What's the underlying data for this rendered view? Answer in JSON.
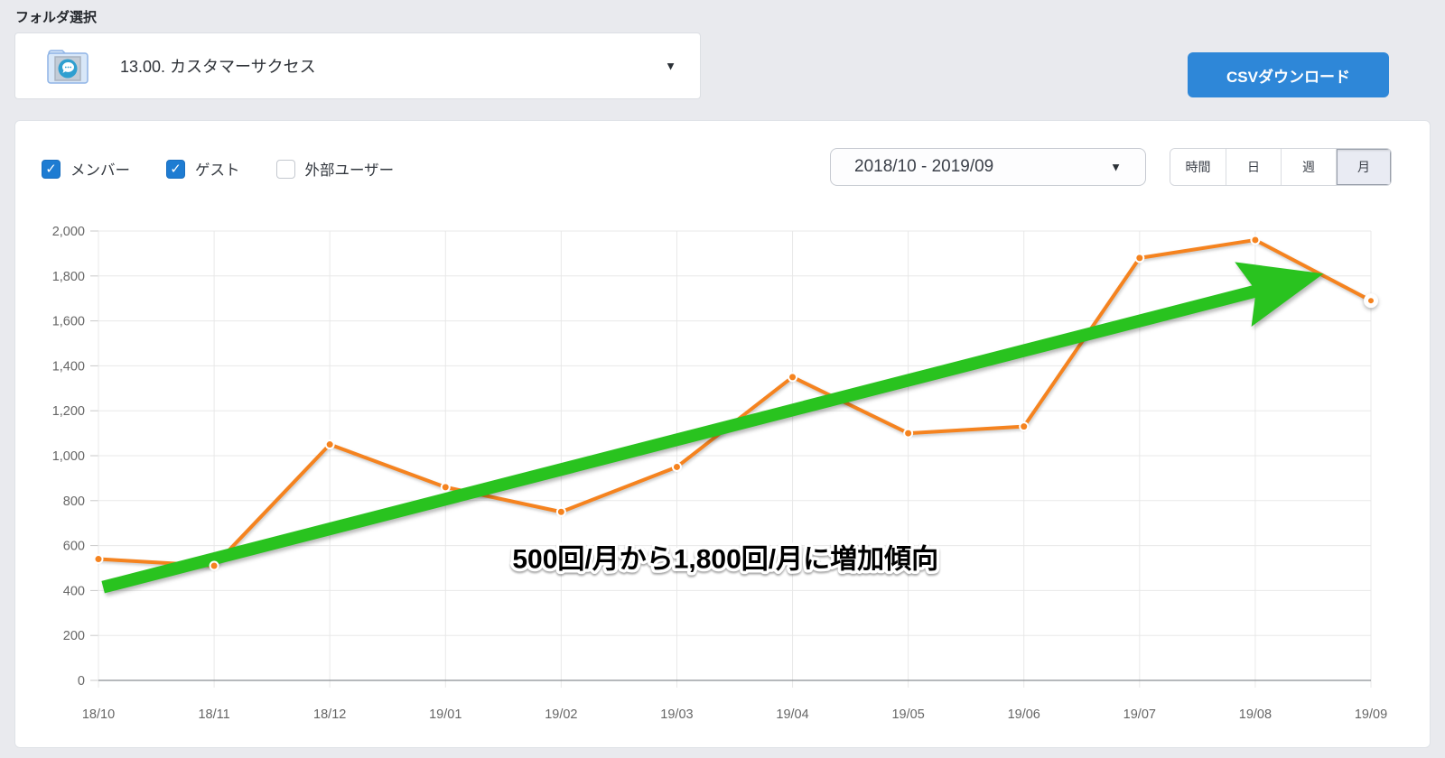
{
  "icons": {
    "caret_down": "▼",
    "check": "✓"
  },
  "folder_select": {
    "label": "フォルダ選択",
    "value": "13.00. カスタマーサクセス"
  },
  "csv_button": {
    "label": "CSVダウンロード",
    "color": "#2e87d8"
  },
  "filters": [
    {
      "label": "メンバー",
      "checked": true
    },
    {
      "label": "ゲスト",
      "checked": true
    },
    {
      "label": "外部ユーザー",
      "checked": false
    }
  ],
  "date_range": {
    "value": "2018/10 - 2019/09"
  },
  "period_buttons": [
    {
      "label": "時間",
      "selected": false
    },
    {
      "label": "日",
      "selected": false
    },
    {
      "label": "週",
      "selected": false
    },
    {
      "label": "月",
      "selected": true
    }
  ],
  "chart_data": {
    "type": "line",
    "categories": [
      "18/10",
      "18/11",
      "18/12",
      "19/01",
      "19/02",
      "19/03",
      "19/04",
      "19/05",
      "19/06",
      "19/07",
      "19/08",
      "19/09"
    ],
    "values": [
      540,
      510,
      1050,
      860,
      750,
      950,
      1350,
      1100,
      1130,
      1880,
      1960,
      1690
    ],
    "ylim": [
      0,
      2000
    ],
    "ytick_step": 200,
    "grid": true,
    "line_color": "#f5831f",
    "point_color": "#f5831f",
    "highlight_last_point": true,
    "annotation": {
      "text": "500回/月から1,800回/月に増加傾向",
      "xi": 5.42,
      "value": 545
    },
    "trend_arrow": {
      "color": "#29c31f",
      "from": {
        "xi": 0.04,
        "value": 415
      },
      "to": {
        "xi": 10.59,
        "value": 1810
      }
    }
  }
}
